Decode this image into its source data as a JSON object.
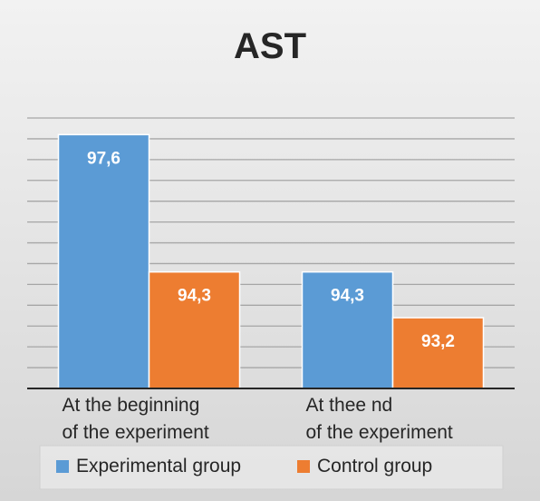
{
  "chart_data": {
    "type": "bar",
    "title": "AST",
    "categories": [
      [
        "At the beginning",
        "of the experiment"
      ],
      [
        "At thee nd",
        "of the experiment"
      ]
    ],
    "series": [
      {
        "name": "Experimental group",
        "values": [
          97.6,
          94.3
        ],
        "labels": [
          "97,6",
          "94,3"
        ],
        "color": "#5b9bd5"
      },
      {
        "name": "Control group",
        "values": [
          94.3,
          93.2
        ],
        "labels": [
          "94,3",
          "93,2"
        ],
        "color": "#ed7d31"
      }
    ],
    "ylim": [
      91.5,
      98.0
    ],
    "grid": true,
    "legend_position": "bottom",
    "xlabel": "",
    "ylabel": ""
  }
}
